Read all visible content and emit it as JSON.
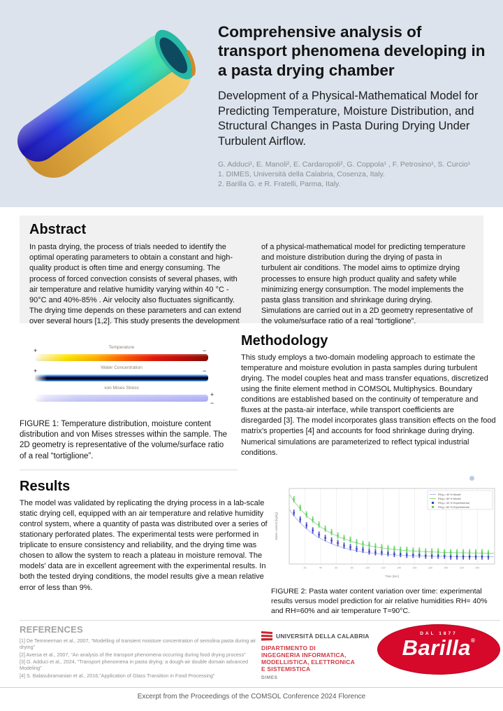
{
  "colors": {
    "header_bg": "#dce3ed",
    "abstract_bg": "#f1f1f1",
    "barilla_red": "#d6092b",
    "unical_red": "#cf3a45",
    "muted_text": "#8d8d8d"
  },
  "header": {
    "title": "Comprehensive analysis of transport phenomena developing in a pasta drying chamber",
    "subtitle": "Development of a Physical-Mathematical Model for Predicting Temperature, Moisture Distribution, and Structural Changes in Pasta During Drying Under Turbulent Airflow.",
    "authors": "G. Adduci¹, E. Manoli², E. Cardaropoli², G. Coppola¹ , F. Petrosino¹, S. Curcio¹",
    "affiliation1": "1. DIMES, Università della Calabria, Cosenza, Italy.",
    "affiliation2": "2. Barilla G. e R. Fratelli, Parma, Italy."
  },
  "abstract": {
    "heading": "Abstract",
    "col1": "In pasta drying, the process of trials needed to identify the optimal operating parameters to obtain a constant and high-quality product is often time and energy consuming. The process of forced convection consists of several phases, with air temperature and relative humidity varying within 40 °C - 90°C and 40%-85% . Air velocity also fluctuates significantly. The drying time depends on these parameters and can extend over several hours [1,2]. This study presents the development",
    "col2": "of a physical-mathematical model for predicting temperature and moisture distribution during the drying of pasta in turbulent air conditions. The model aims to optimize drying processes to ensure high product quality and safety while minimizing energy consumption. The model implements the pasta glass transition and shrinkage during drying. Simulations are carried out in a 2D geometry representative of the volume/surface ratio of a real “tortiglione”."
  },
  "figure1": {
    "bars": [
      {
        "label": "Temperature",
        "plus": "+",
        "minus": "−",
        "direction": "right",
        "gradient": [
          "#ffffff 0%",
          "#fdf3b0 4%",
          "#ffe400 18%",
          "#ffb300 35%",
          "#ff5a00 52%",
          "#e51a0a 68%",
          "#c00d08 84%",
          "#8a0b06 100%"
        ]
      },
      {
        "label": "Water Concentration",
        "plus": "+",
        "minus": "−",
        "direction": "bottom",
        "gradient": [
          "#9ad8ff 0%",
          "#2a7de0 18%",
          "#0a2a80 34%",
          "#05040e 48%",
          "#05040e 64%",
          "#123a9a 80%",
          "#3f8ce0 92%",
          "#7fc4f4 100%"
        ]
      },
      {
        "label": "von Mises Stress",
        "plus": "+",
        "minus": "−",
        "direction": "right",
        "gradient": [
          "#ffffff 0%",
          "#e4e4ff 6%",
          "#cccdfb 25%",
          "#bfc0fa 70%",
          "#b4b6fa 100%"
        ]
      }
    ],
    "caption": "FIGURE 1: Temperature distribution, moisture content distribution and von Mises stresses within the sample. The 2D geometry is representative of the volume/surface ratio of a real “tortiglione”."
  },
  "methodology": {
    "heading": "Methodology",
    "text": "This study employs a two-domain modeling approach to estimate the temperature and moisture evolution in pasta samples during turbulent drying. The model couples heat and mass transfer equations, discretized using the finite element method in COMSOL Multiphysics. Boundary conditions are established based on the continuity of temperature and fluxes at the pasta-air interface, while transport coefficients are disregarded [3]. The model incorporates glass transition effects on the food matrix's properties [4] and accounts for food shrinkage during drying. Numerical simulations are parameterized to reflect typical industrial conditions."
  },
  "results": {
    "heading": "Results",
    "text": "The model was validated by replicating the drying process in a lab-scale static drying cell, equipped with an air temperature and relative humidity control system, where a quantity of pasta was distributed over a series of stationary perforated plates. The experimental tests were performed in triplicate to ensure consistency and reliability, and the drying time was chosen to allow the system to reach a plateau in moisture removal. The models' data are in excellent agreement with the experimental results. In both the tested drying conditions, the model results give a mean relative error of less than 9%."
  },
  "figure2": {
    "caption": "FIGURE 2:  Pasta water content variation over time: experimental results versus model prediction for air relative humidities RH= 40% and RH=60% and air temperature T=90°C.",
    "chart_data": {
      "type": "scatter",
      "title": "",
      "xlabel": "Time [min]",
      "ylabel": "Water content [kg/kg]",
      "xlim": [
        0,
        262
      ],
      "ylim": [
        0.05,
        0.95
      ],
      "xticks": [
        20,
        40,
        60,
        80,
        100,
        120,
        140,
        160,
        180,
        200,
        220,
        240
      ],
      "grid": "vertical",
      "legend_position": "top-right",
      "x": [
        6,
        14,
        22,
        30,
        38,
        46,
        54,
        62,
        70,
        78,
        86,
        94,
        102,
        110,
        118,
        126,
        134,
        142,
        150,
        158,
        166,
        174,
        182,
        190,
        198,
        206,
        214,
        222,
        230,
        238,
        246,
        254
      ],
      "models": [
        {
          "name": "RHₐᵢᵣ= 40 % Model",
          "color": "#aab9ee",
          "y0": 0.7,
          "yf": 0.135,
          "tau": 42
        },
        {
          "name": "RHₐᵢᵣ= 60 % Model",
          "color": "#8fd98f",
          "y0": 0.88,
          "yf": 0.175,
          "tau": 50
        }
      ],
      "experimental": [
        {
          "name": "RHₐᵢᵣ= 40 % Experimental",
          "color": "#3939c8",
          "err": 0.025,
          "y": [
            0.66,
            0.58,
            0.51,
            0.45,
            0.4,
            0.36,
            0.33,
            0.3,
            0.27,
            0.25,
            0.23,
            0.22,
            0.2,
            0.19,
            0.19,
            0.18,
            0.17,
            0.17,
            0.16,
            0.16,
            0.16,
            0.15,
            0.15,
            0.15,
            0.15,
            0.14,
            0.14,
            0.14,
            0.14,
            0.14,
            0.14,
            0.14
          ]
        },
        {
          "name": "RHₐᵢᵣ= 60 % Experimental",
          "color": "#5ecf5e",
          "err": 0.025,
          "y": [
            0.82,
            0.72,
            0.64,
            0.58,
            0.52,
            0.47,
            0.43,
            0.39,
            0.36,
            0.34,
            0.31,
            0.29,
            0.28,
            0.26,
            0.25,
            0.24,
            0.23,
            0.22,
            0.22,
            0.21,
            0.21,
            0.2,
            0.2,
            0.2,
            0.19,
            0.19,
            0.19,
            0.19,
            0.19,
            0.19,
            0.19,
            0.18
          ]
        }
      ],
      "legend": [
        {
          "label": "RHₐᵢᵣ= 40 % Model",
          "color": "#aab9ee",
          "style": "line"
        },
        {
          "label": "RHₐᵢᵣ= 60 % Model",
          "color": "#8fd98f",
          "style": "line"
        },
        {
          "label": "RHₐᵢᵣ= 40 % Experimental",
          "color": "#3939c8",
          "style": "point"
        },
        {
          "label": "RHₐᵢᵣ= 60 % Experimental",
          "color": "#5ecf5e",
          "style": "point"
        }
      ]
    }
  },
  "references": {
    "heading": "REFERENCES",
    "items": [
      "[1] De Temmerman et al., 2007,  “Modelling of transient moisture concentration of semolina pasta during air drying”",
      "[2] Aversa et al., 2007, “An analysis of the transport phenomena occurring during food drying process”",
      "[3] G. Adduci et al., 2024, “Transport phenomena in pasta drying: a dough-air double domain advanced Modeling”",
      "[4] S. Balasubramanian et al., 2016,“Application of Glass Transition in Food Processing”"
    ]
  },
  "logos": {
    "unical": {
      "university": "UNIVERSITÀ DELLA CALABRIA",
      "dept_lines": [
        "DIPARTIMENTO DI",
        "INGEGNERIA INFORMATICA,",
        "MODELLISTICA, ELETTRONICA",
        "E SISTEMISTICA"
      ],
      "acronym": "DIMES"
    },
    "barilla": {
      "tagline": "DAL 1877",
      "name": "Barilla",
      "registered": "®"
    }
  },
  "footer": {
    "text": "Excerpt from the Proceedings of the COMSOL Conference 2024 Florence"
  }
}
